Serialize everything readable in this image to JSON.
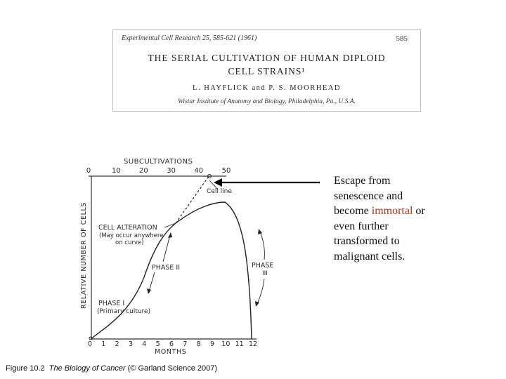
{
  "paper": {
    "journal": "Experimental Cell Research 25, 585-621 (1961)",
    "page_number": "585",
    "title_line1": "THE SERIAL CULTIVATION OF HUMAN DIPLOID",
    "title_line2": "CELL STRAINS¹",
    "authors": "L. HAYFLICK and P. S. MOORHEAD",
    "institution": "Wistar Institute of Anatomy and Biology, Philadelphia, Pa., U.S.A."
  },
  "diagram": {
    "top_axis_label": "SUBCULTIVATIONS",
    "top_ticks": [
      "0",
      "10",
      "20",
      "30",
      "40",
      "50"
    ],
    "bottom_axis_label": "MONTHS",
    "bottom_ticks": [
      "0",
      "1",
      "2",
      "3",
      "4",
      "5",
      "6",
      "7",
      "8",
      "9",
      "10",
      "11",
      "12"
    ],
    "y_axis_label": "RELATIVE NUMBER OF CELLS",
    "cell_line_label": "Cell line",
    "cell_alteration_line1": "CELL ALTERATION",
    "cell_alteration_line2": "(May occur anywhere",
    "cell_alteration_line3": "on curve)",
    "phase1_line1": "PHASE I",
    "phase1_line2": "(Primary culture)",
    "phase2_label": "PHASE II",
    "phase3_line1": "PHASE",
    "phase3_line2": "III"
  },
  "annotation": {
    "part1": "Escape from senescence and become ",
    "highlight": "immortal",
    "part2": " or even further transformed to malignant cells."
  },
  "caption": {
    "prefix": "Figure 10.2  ",
    "book": "The Biology of Cancer",
    "suffix": " (© Garland Science 2007)"
  }
}
